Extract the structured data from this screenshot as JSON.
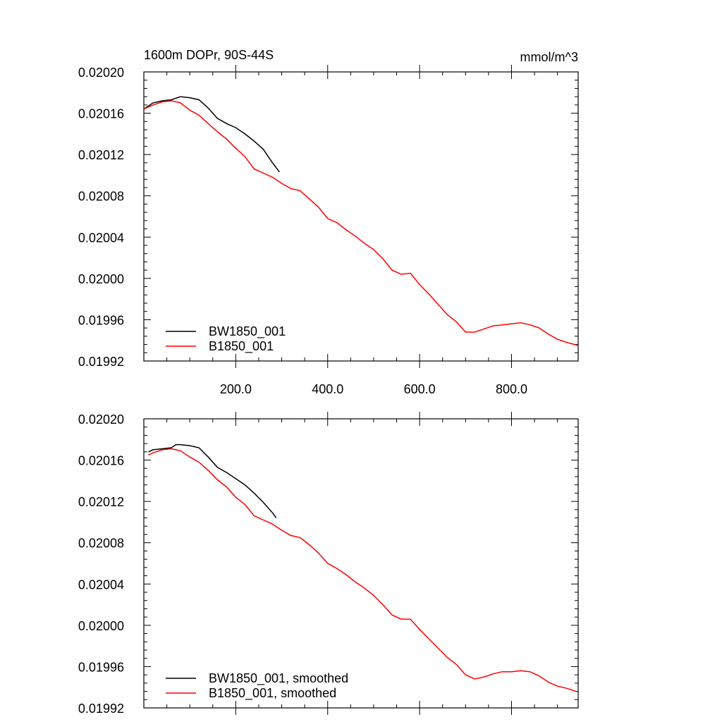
{
  "figure": {
    "title_left": "1600m DOPr, 90S-44S",
    "title_right": "mmol/m^3"
  },
  "chart_data": [
    {
      "type": "line",
      "title": "1600m DOPr, 90S-44S",
      "units": "mmol/m^3",
      "xlim": [
        0,
        945
      ],
      "ylim": [
        0.01992,
        0.0202
      ],
      "x_ticks": [
        200,
        400,
        600,
        800
      ],
      "x_tick_labels": [
        "200.0",
        "400.0",
        "600.0",
        "800.0"
      ],
      "y_ticks": [
        0.01992,
        0.01996,
        0.02,
        0.02004,
        0.02008,
        0.02012,
        0.02016,
        0.0202
      ],
      "y_tick_labels": [
        "0.01992",
        "0.01996",
        "0.02000",
        "0.02004",
        "0.02008",
        "0.02012",
        "0.02016",
        "0.02020"
      ],
      "legend_position": "bottom-left",
      "series": [
        {
          "name": "BW1850_001",
          "color": "#000000",
          "x": [
            0,
            20,
            40,
            60,
            80,
            100,
            120,
            140,
            160,
            180,
            200,
            220,
            240,
            260,
            280,
            295
          ],
          "y": [
            0.020164,
            0.02017,
            0.020172,
            0.020173,
            0.020176,
            0.020175,
            0.020173,
            0.020165,
            0.020155,
            0.02015,
            0.020146,
            0.02014,
            0.020133,
            0.020125,
            0.020112,
            0.020103
          ]
        },
        {
          "name": "B1850_001",
          "color": "#ff0000",
          "x": [
            0,
            20,
            40,
            60,
            80,
            100,
            120,
            140,
            160,
            180,
            200,
            220,
            240,
            260,
            280,
            300,
            320,
            340,
            360,
            380,
            400,
            420,
            440,
            460,
            480,
            500,
            520,
            540,
            560,
            580,
            600,
            620,
            640,
            660,
            680,
            700,
            720,
            740,
            760,
            780,
            800,
            820,
            840,
            860,
            880,
            900,
            920,
            945
          ],
          "y": [
            0.020164,
            0.020168,
            0.020171,
            0.020172,
            0.02017,
            0.020163,
            0.020158,
            0.02015,
            0.020142,
            0.020135,
            0.020126,
            0.020118,
            0.020106,
            0.020102,
            0.020098,
            0.020092,
            0.020087,
            0.020085,
            0.020077,
            0.020069,
            0.020058,
            0.020054,
            0.020047,
            0.020041,
            0.020034,
            0.020028,
            0.020019,
            0.020008,
            0.020004,
            0.020005,
            0.019994,
            0.019985,
            0.019975,
            0.019965,
            0.019958,
            0.019948,
            0.019948,
            0.019951,
            0.019954,
            0.019955,
            0.019956,
            0.019957,
            0.019955,
            0.019952,
            0.019946,
            0.019941,
            0.019938,
            0.019935
          ]
        }
      ]
    },
    {
      "type": "line",
      "xlim": [
        0,
        945
      ],
      "ylim": [
        0.01992,
        0.0202
      ],
      "x_ticks": [
        200,
        400,
        600,
        800
      ],
      "y_ticks": [
        0.01992,
        0.01996,
        0.02,
        0.02004,
        0.02008,
        0.02012,
        0.02016,
        0.0202
      ],
      "y_tick_labels": [
        "0.01992",
        "0.01996",
        "0.02000",
        "0.02004",
        "0.02008",
        "0.02012",
        "0.02016",
        "0.02020"
      ],
      "legend_position": "bottom-left",
      "series": [
        {
          "name": "BW1850_001, smoothed",
          "color": "#000000",
          "x": [
            10,
            20,
            40,
            60,
            70,
            80,
            100,
            120,
            140,
            160,
            180,
            200,
            220,
            240,
            260,
            280,
            288
          ],
          "y": [
            0.020168,
            0.02017,
            0.020171,
            0.020172,
            0.020175,
            0.020175,
            0.020174,
            0.020172,
            0.020163,
            0.020153,
            0.020148,
            0.020142,
            0.020136,
            0.020128,
            0.020119,
            0.020109,
            0.020104
          ]
        },
        {
          "name": "B1850_001, smoothed",
          "color": "#ff0000",
          "x": [
            10,
            20,
            40,
            60,
            80,
            100,
            120,
            140,
            160,
            180,
            200,
            220,
            240,
            260,
            280,
            300,
            320,
            340,
            360,
            380,
            400,
            420,
            440,
            460,
            480,
            500,
            520,
            540,
            560,
            580,
            600,
            620,
            640,
            660,
            680,
            700,
            720,
            740,
            760,
            780,
            800,
            820,
            840,
            860,
            880,
            900,
            920,
            940
          ],
          "y": [
            0.020165,
            0.020167,
            0.02017,
            0.020171,
            0.020169,
            0.020163,
            0.020158,
            0.02015,
            0.020141,
            0.020134,
            0.020124,
            0.020117,
            0.020106,
            0.020102,
            0.020098,
            0.020092,
            0.020087,
            0.020085,
            0.020078,
            0.02007,
            0.02006,
            0.020055,
            0.020049,
            0.020042,
            0.020036,
            0.020029,
            0.02002,
            0.02001,
            0.020006,
            0.020006,
            0.019996,
            0.019987,
            0.019978,
            0.019969,
            0.019962,
            0.019952,
            0.019948,
            0.01995,
            0.019953,
            0.019955,
            0.019955,
            0.019956,
            0.019955,
            0.019951,
            0.019945,
            0.019941,
            0.019939,
            0.019936
          ]
        }
      ]
    }
  ]
}
